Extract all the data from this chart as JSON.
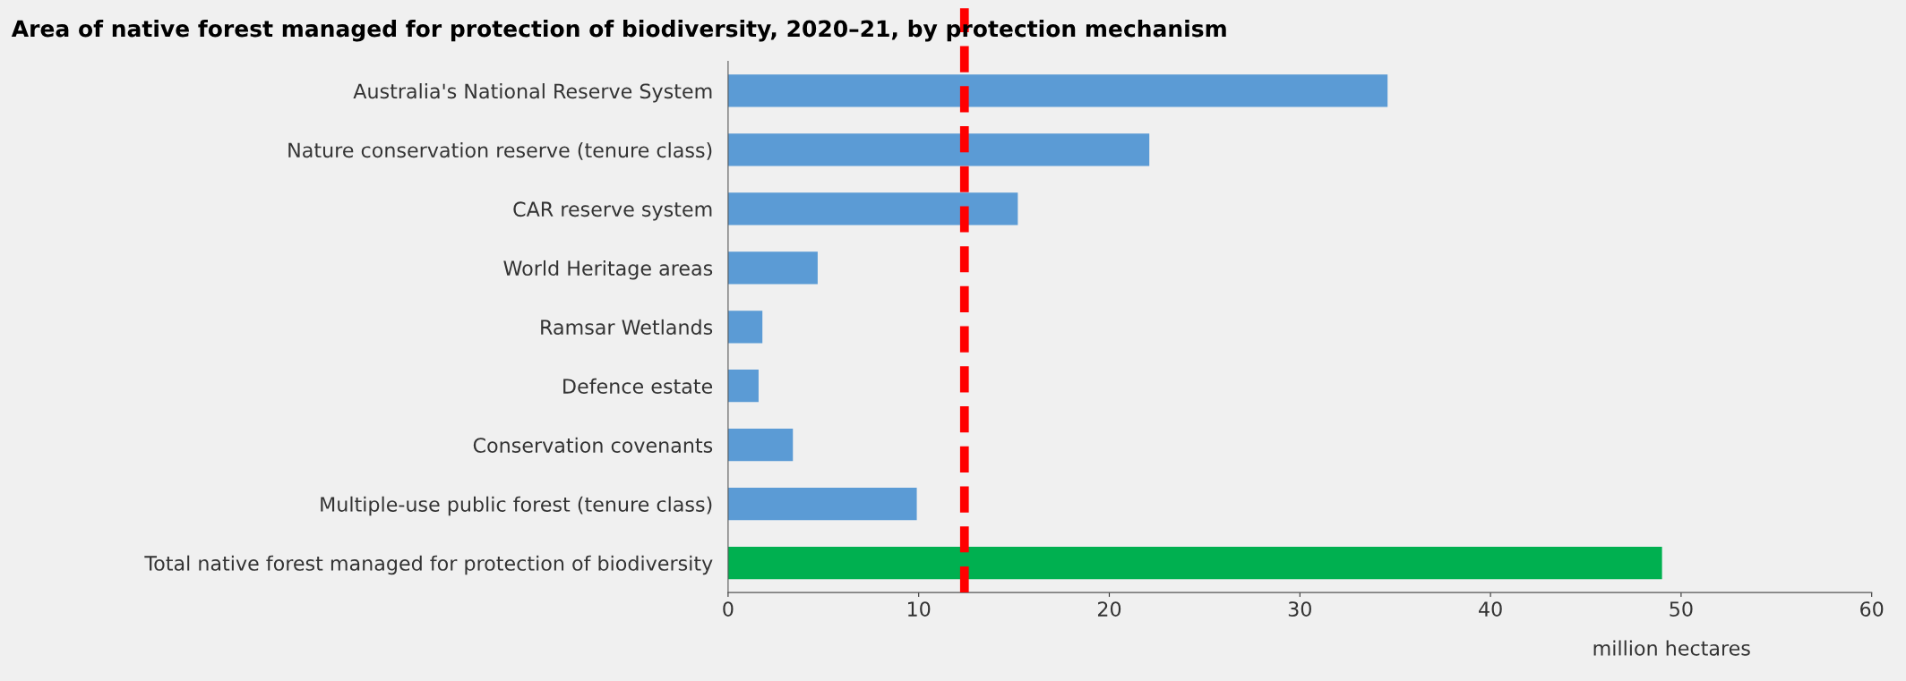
{
  "chart_data": {
    "type": "bar",
    "orientation": "horizontal",
    "title": "Area of native forest managed for protection of biodiversity, 2020–21, by protection mechanism",
    "categories": [
      "Australia's National Reserve System",
      "Nature conservation reserve (tenure class)",
      "CAR reserve system",
      "World Heritage areas",
      "Ramsar Wetlands",
      "Defence estate",
      "Conservation covenants",
      "Multiple-use public forest (tenure class)",
      "Total native forest managed for protection of biodiversity"
    ],
    "values": [
      34.6,
      22.1,
      15.2,
      4.7,
      1.8,
      1.6,
      3.4,
      9.9,
      49.0
    ],
    "colors": [
      "#5b9bd5",
      "#5b9bd5",
      "#5b9bd5",
      "#5b9bd5",
      "#5b9bd5",
      "#5b9bd5",
      "#5b9bd5",
      "#5b9bd5",
      "#00b050"
    ],
    "xlabel": "million hectares",
    "xlim": [
      0,
      60
    ],
    "xticks": [
      0,
      10,
      20,
      30,
      40,
      50,
      60
    ],
    "ref_lines": [
      {
        "axis": "x",
        "value": 12.4,
        "color": "#ff0000",
        "line_style": "dashed"
      }
    ],
    "grid": false,
    "legend": false
  }
}
